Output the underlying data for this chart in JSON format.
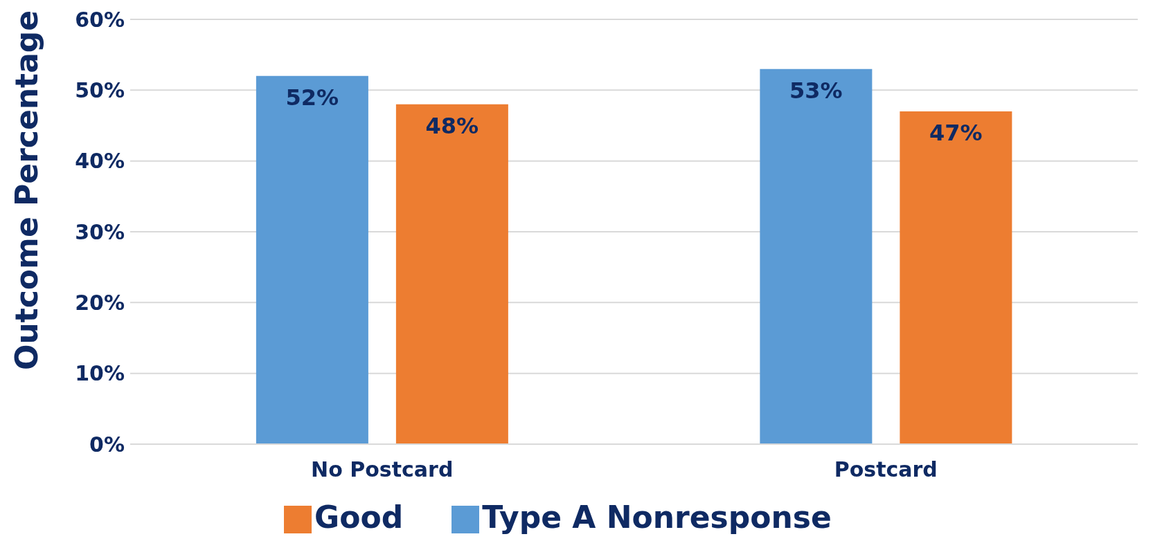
{
  "chart_data": {
    "type": "bar",
    "ylabel": "Outcome Percentage",
    "categories": [
      "No Postcard",
      "Postcard"
    ],
    "series": [
      {
        "name": "Type A Nonresponse",
        "color": "#5b9bd5",
        "values": [
          52,
          53
        ],
        "value_labels": [
          "52%",
          "53%"
        ]
      },
      {
        "name": "Good",
        "color": "#ed7d31",
        "values": [
          48,
          47
        ],
        "value_labels": [
          "48%",
          "47%"
        ]
      }
    ],
    "ylim": [
      0,
      60
    ],
    "yticks": [
      {
        "value": 0,
        "label": "0%"
      },
      {
        "value": 10,
        "label": "10%"
      },
      {
        "value": 20,
        "label": "20%"
      },
      {
        "value": 30,
        "label": "30%"
      },
      {
        "value": 40,
        "label": "40%"
      },
      {
        "value": 50,
        "label": "50%"
      },
      {
        "value": 60,
        "label": "60%"
      }
    ],
    "grid": "y",
    "legend": "bottom"
  }
}
